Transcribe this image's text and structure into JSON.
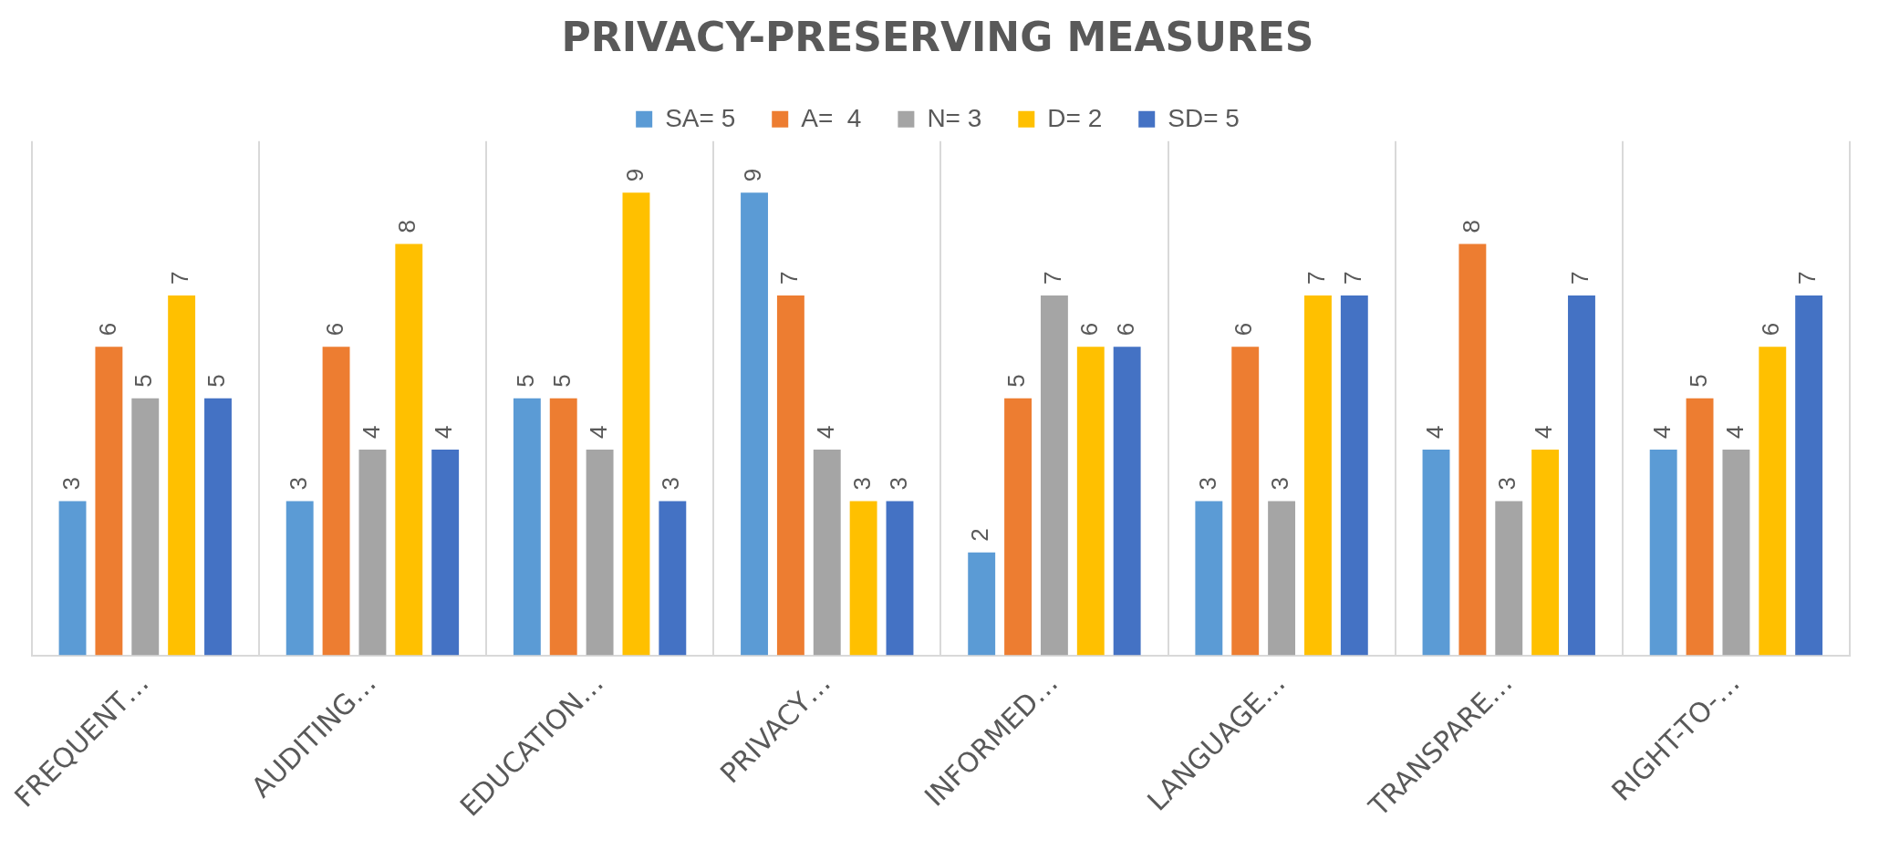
{
  "chart_data": {
    "type": "bar",
    "title": "PRIVACY-PRESERVING MEASURES",
    "categories": [
      "FREQUENT…",
      "AUDITING…",
      "EDUCATION…",
      "PRIVACY…",
      "INFORMED…",
      "LANGUAGE…",
      "TRANSPARE…",
      "RIGHT-TO-…"
    ],
    "series": [
      {
        "name": "SA= 5",
        "color": "#5b9bd5",
        "values": [
          3,
          3,
          5,
          9,
          2,
          3,
          4,
          4
        ]
      },
      {
        "name": "A=  4",
        "color": "#ed7d31",
        "values": [
          6,
          6,
          5,
          7,
          5,
          6,
          8,
          5
        ]
      },
      {
        "name": "N= 3",
        "color": "#a5a5a5",
        "values": [
          5,
          4,
          4,
          4,
          7,
          3,
          3,
          4
        ]
      },
      {
        "name": "D= 2",
        "color": "#ffc000",
        "values": [
          7,
          8,
          9,
          3,
          6,
          7,
          4,
          6
        ]
      },
      {
        "name": "SD= 5",
        "color": "#4472c4",
        "values": [
          5,
          4,
          3,
          3,
          6,
          7,
          7,
          7
        ]
      }
    ],
    "data_labels": true,
    "grid": "x",
    "legend": "top"
  }
}
